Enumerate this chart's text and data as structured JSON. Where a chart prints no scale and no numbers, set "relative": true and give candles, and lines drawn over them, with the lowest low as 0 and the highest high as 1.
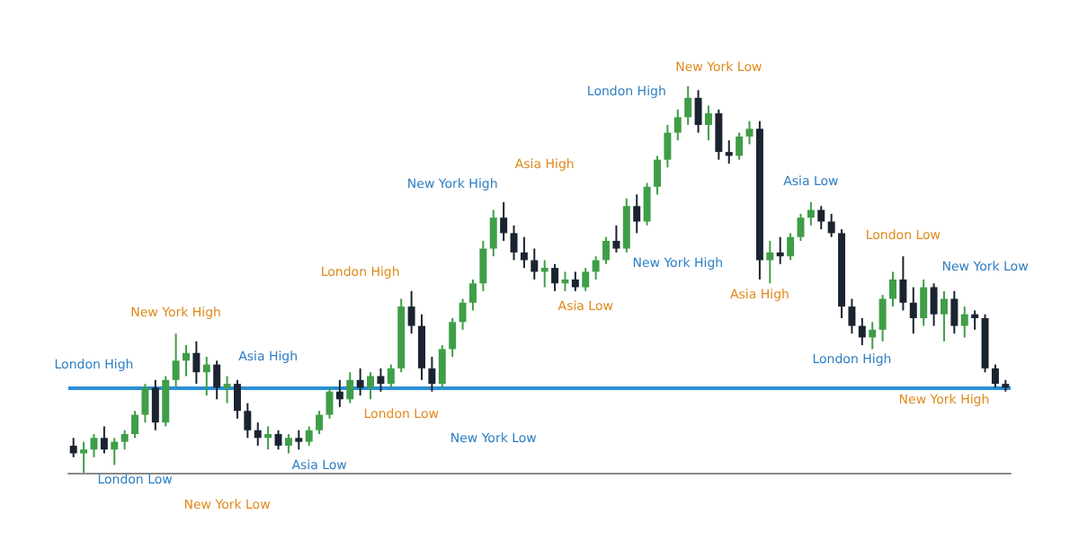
{
  "chart_data": {
    "type": "candlestick",
    "relative": true,
    "categories": [
      null,
      null,
      null,
      null,
      null,
      null,
      null,
      null,
      null,
      null,
      null,
      null,
      null,
      null,
      null,
      null,
      null,
      null,
      null,
      null,
      null,
      null,
      null,
      null,
      null,
      null,
      null,
      null,
      null,
      null,
      null,
      null,
      null,
      null,
      null,
      null,
      null,
      null,
      null,
      null,
      null,
      null,
      null,
      null,
      null,
      null,
      null,
      null,
      null,
      null,
      null,
      null,
      null,
      null,
      null,
      null,
      null,
      null,
      null,
      null,
      null,
      null,
      null,
      null,
      null,
      null,
      null,
      null,
      null,
      null,
      null,
      null,
      null,
      null,
      null,
      null,
      null,
      null,
      null,
      null,
      null,
      null,
      null,
      null,
      null,
      null,
      null,
      null,
      null,
      null,
      null,
      null
    ],
    "ohlc": [
      [
        0.07,
        0.09,
        0.04,
        0.05
      ],
      [
        0.05,
        0.08,
        0.0,
        0.06
      ],
      [
        0.06,
        0.1,
        0.04,
        0.09
      ],
      [
        0.09,
        0.12,
        0.05,
        0.06
      ],
      [
        0.06,
        0.09,
        0.02,
        0.08
      ],
      [
        0.08,
        0.11,
        0.06,
        0.1
      ],
      [
        0.1,
        0.16,
        0.09,
        0.15
      ],
      [
        0.15,
        0.23,
        0.13,
        0.22
      ],
      [
        0.22,
        0.24,
        0.11,
        0.13
      ],
      [
        0.13,
        0.25,
        0.12,
        0.24
      ],
      [
        0.24,
        0.36,
        0.22,
        0.29
      ],
      [
        0.29,
        0.33,
        0.25,
        0.31
      ],
      [
        0.31,
        0.34,
        0.23,
        0.26
      ],
      [
        0.26,
        0.3,
        0.2,
        0.28
      ],
      [
        0.28,
        0.29,
        0.19,
        0.22
      ],
      [
        0.22,
        0.25,
        0.18,
        0.23
      ],
      [
        0.23,
        0.24,
        0.14,
        0.16
      ],
      [
        0.16,
        0.18,
        0.09,
        0.11
      ],
      [
        0.11,
        0.13,
        0.07,
        0.09
      ],
      [
        0.09,
        0.12,
        0.06,
        0.1
      ],
      [
        0.1,
        0.11,
        0.06,
        0.07
      ],
      [
        0.07,
        0.1,
        0.05,
        0.09
      ],
      [
        0.09,
        0.11,
        0.06,
        0.08
      ],
      [
        0.08,
        0.12,
        0.07,
        0.11
      ],
      [
        0.11,
        0.16,
        0.1,
        0.15
      ],
      [
        0.15,
        0.22,
        0.14,
        0.21
      ],
      [
        0.21,
        0.24,
        0.17,
        0.19
      ],
      [
        0.19,
        0.26,
        0.18,
        0.24
      ],
      [
        0.24,
        0.27,
        0.2,
        0.22
      ],
      [
        0.22,
        0.26,
        0.19,
        0.25
      ],
      [
        0.25,
        0.27,
        0.21,
        0.23
      ],
      [
        0.23,
        0.28,
        0.22,
        0.27
      ],
      [
        0.27,
        0.45,
        0.26,
        0.43
      ],
      [
        0.43,
        0.47,
        0.36,
        0.38
      ],
      [
        0.38,
        0.41,
        0.24,
        0.27
      ],
      [
        0.27,
        0.3,
        0.21,
        0.23
      ],
      [
        0.23,
        0.33,
        0.22,
        0.32
      ],
      [
        0.32,
        0.4,
        0.3,
        0.39
      ],
      [
        0.39,
        0.45,
        0.37,
        0.44
      ],
      [
        0.44,
        0.5,
        0.42,
        0.49
      ],
      [
        0.49,
        0.6,
        0.47,
        0.58
      ],
      [
        0.58,
        0.68,
        0.56,
        0.66
      ],
      [
        0.66,
        0.7,
        0.6,
        0.62
      ],
      [
        0.62,
        0.64,
        0.55,
        0.57
      ],
      [
        0.57,
        0.61,
        0.53,
        0.55
      ],
      [
        0.55,
        0.58,
        0.5,
        0.52
      ],
      [
        0.52,
        0.55,
        0.48,
        0.53
      ],
      [
        0.53,
        0.54,
        0.47,
        0.49
      ],
      [
        0.49,
        0.52,
        0.47,
        0.5
      ],
      [
        0.5,
        0.52,
        0.47,
        0.48
      ],
      [
        0.48,
        0.53,
        0.47,
        0.52
      ],
      [
        0.52,
        0.56,
        0.5,
        0.55
      ],
      [
        0.55,
        0.61,
        0.54,
        0.6
      ],
      [
        0.6,
        0.64,
        0.57,
        0.58
      ],
      [
        0.58,
        0.71,
        0.57,
        0.69
      ],
      [
        0.69,
        0.72,
        0.62,
        0.65
      ],
      [
        0.65,
        0.75,
        0.64,
        0.74
      ],
      [
        0.74,
        0.82,
        0.72,
        0.81
      ],
      [
        0.81,
        0.9,
        0.79,
        0.88
      ],
      [
        0.88,
        0.94,
        0.86,
        0.92
      ],
      [
        0.92,
        1.0,
        0.9,
        0.97
      ],
      [
        0.97,
        0.99,
        0.88,
        0.9
      ],
      [
        0.9,
        0.95,
        0.86,
        0.93
      ],
      [
        0.93,
        0.94,
        0.81,
        0.83
      ],
      [
        0.83,
        0.86,
        0.8,
        0.82
      ],
      [
        0.82,
        0.88,
        0.81,
        0.87
      ],
      [
        0.87,
        0.91,
        0.85,
        0.89
      ],
      [
        0.89,
        0.91,
        0.5,
        0.55
      ],
      [
        0.55,
        0.6,
        0.49,
        0.57
      ],
      [
        0.57,
        0.61,
        0.54,
        0.56
      ],
      [
        0.56,
        0.62,
        0.55,
        0.61
      ],
      [
        0.61,
        0.67,
        0.6,
        0.66
      ],
      [
        0.66,
        0.7,
        0.64,
        0.68
      ],
      [
        0.68,
        0.69,
        0.63,
        0.65
      ],
      [
        0.65,
        0.67,
        0.61,
        0.62
      ],
      [
        0.62,
        0.63,
        0.4,
        0.43
      ],
      [
        0.43,
        0.45,
        0.36,
        0.38
      ],
      [
        0.38,
        0.4,
        0.33,
        0.35
      ],
      [
        0.35,
        0.39,
        0.32,
        0.37
      ],
      [
        0.37,
        0.46,
        0.34,
        0.45
      ],
      [
        0.45,
        0.52,
        0.43,
        0.5
      ],
      [
        0.5,
        0.56,
        0.42,
        0.44
      ],
      [
        0.44,
        0.48,
        0.36,
        0.4
      ],
      [
        0.4,
        0.5,
        0.38,
        0.48
      ],
      [
        0.48,
        0.49,
        0.38,
        0.41
      ],
      [
        0.41,
        0.47,
        0.34,
        0.45
      ],
      [
        0.45,
        0.47,
        0.36,
        0.38
      ],
      [
        0.38,
        0.43,
        0.35,
        0.41
      ],
      [
        0.41,
        0.42,
        0.37,
        0.4
      ],
      [
        0.4,
        0.41,
        0.26,
        0.27
      ],
      [
        0.27,
        0.28,
        0.22,
        0.23
      ],
      [
        0.23,
        0.24,
        0.21,
        0.22
      ]
    ],
    "ref_lines": [
      {
        "axis": "y",
        "value": 0.22,
        "color": "#2a8fd6"
      }
    ],
    "annotations": [
      "London High",
      "London Low",
      "New York High",
      "New York Low",
      "Asia High",
      "Asia Low",
      "London High",
      "London Low",
      "New York High",
      "New York Low",
      "Asia High",
      "Asia Low",
      "London High",
      "New York High",
      "New York Low",
      "Asia High",
      "Asia Low",
      "London High",
      "London Low",
      "New York High",
      "New York Low"
    ]
  }
}
